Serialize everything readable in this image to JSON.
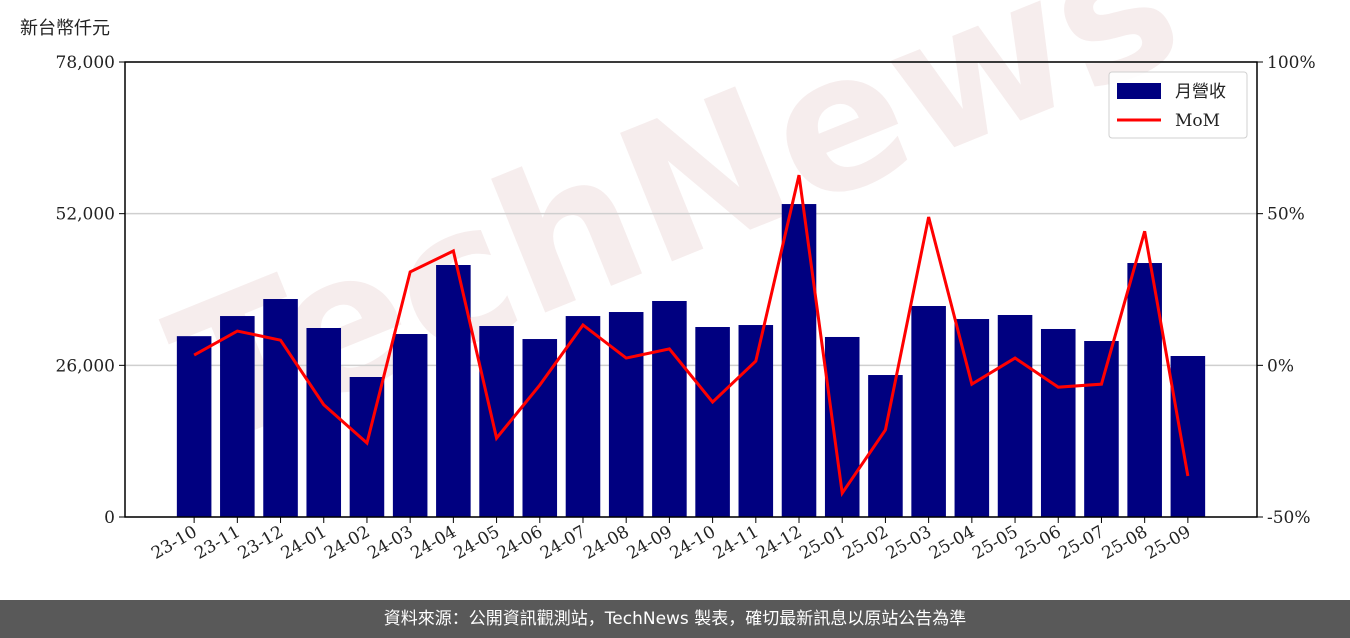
{
  "chart_data": {
    "type": "bar-line",
    "y_axis_label": "新台幣仟元",
    "categories": [
      "23-10",
      "23-11",
      "23-12",
      "24-01",
      "24-02",
      "24-03",
      "24-04",
      "24-05",
      "24-06",
      "24-07",
      "24-08",
      "24-09",
      "24-10",
      "24-11",
      "24-12",
      "25-01",
      "25-02",
      "25-03",
      "25-04",
      "25-05",
      "25-06",
      "25-07",
      "25-08",
      "25-09"
    ],
    "series": [
      {
        "name": "月營收",
        "type": "bar",
        "color": "#000080",
        "values": [
          31000,
          34450,
          37370,
          32400,
          24000,
          31370,
          43200,
          32740,
          30510,
          34450,
          35140,
          37030,
          32570,
          32910,
          53650,
          30860,
          24340,
          36170,
          33940,
          34630,
          32230,
          30170,
          43540,
          27600
        ]
      },
      {
        "name": "MoM",
        "type": "line",
        "axis": "y2",
        "color": "#ff0000",
        "values": [
          3.4,
          11.3,
          8.3,
          -13,
          -25.6,
          30.8,
          37.7,
          -24,
          -6.5,
          13.3,
          2.4,
          5.4,
          -12.1,
          1.4,
          62.7,
          -42.1,
          -21.3,
          48.9,
          -6.2,
          2.4,
          -7.2,
          -6.2,
          44.2,
          -36.5
        ]
      }
    ],
    "ylim": [
      0,
      78000
    ],
    "yticks": [
      0,
      {
        "value": 26000,
        "label": "26,000"
      },
      {
        "value": 52000,
        "label": "52,000"
      },
      {
        "value": 78000,
        "label": "78,000"
      }
    ],
    "y2lim": [
      -50,
      100
    ],
    "y2ticks": [
      {
        "value": -50,
        "label": "-50%"
      },
      {
        "value": 0,
        "label": "0%"
      },
      {
        "value": 50,
        "label": "50%"
      },
      {
        "value": 100,
        "label": "100%"
      }
    ],
    "grid": true,
    "legend": "upper right",
    "footer": "資料來源：公開資訊觀測站，TechNews 製表，確切最新訊息以原站公告為準"
  }
}
